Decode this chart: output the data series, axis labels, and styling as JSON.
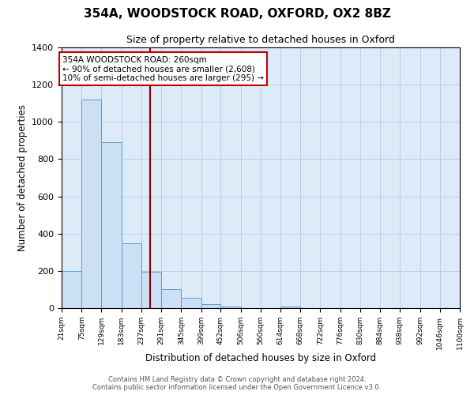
{
  "title": "354A, WOODSTOCK ROAD, OXFORD, OX2 8BZ",
  "subtitle": "Size of property relative to detached houses in Oxford",
  "xlabel": "Distribution of detached houses by size in Oxford",
  "ylabel": "Number of detached properties",
  "bar_color": "#cce0f5",
  "bar_edgecolor": "#5b9bd5",
  "background_color": "#ddeaf8",
  "grid_color": "#b8cfe8",
  "vline_x": 260,
  "vline_color": "#8b0000",
  "bin_edges": [
    21,
    75,
    129,
    183,
    237,
    291,
    345,
    399,
    452,
    506,
    560,
    614,
    668,
    722,
    776,
    830,
    884,
    938,
    992,
    1046,
    1100
  ],
  "bin_labels": [
    "21sqm",
    "75sqm",
    "129sqm",
    "183sqm",
    "237sqm",
    "291sqm",
    "345sqm",
    "399sqm",
    "452sqm",
    "506sqm",
    "560sqm",
    "614sqm",
    "668sqm",
    "722sqm",
    "776sqm",
    "830sqm",
    "884sqm",
    "938sqm",
    "992sqm",
    "1046sqm",
    "1100sqm"
  ],
  "counts": [
    200,
    1120,
    890,
    350,
    195,
    100,
    55,
    20,
    10,
    0,
    0,
    10,
    0,
    0,
    0,
    0,
    0,
    0,
    0,
    0
  ],
  "ylim": [
    0,
    1400
  ],
  "yticks": [
    0,
    200,
    400,
    600,
    800,
    1000,
    1200,
    1400
  ],
  "annotation_title": "354A WOODSTOCK ROAD: 260sqm",
  "annotation_line1": "← 90% of detached houses are smaller (2,608)",
  "annotation_line2": "10% of semi-detached houses are larger (295) →",
  "annotation_box_edgecolor": "#c00000",
  "footnote1": "Contains HM Land Registry data © Crown copyright and database right 2024.",
  "footnote2": "Contains public sector information licensed under the Open Government Licence v3.0."
}
